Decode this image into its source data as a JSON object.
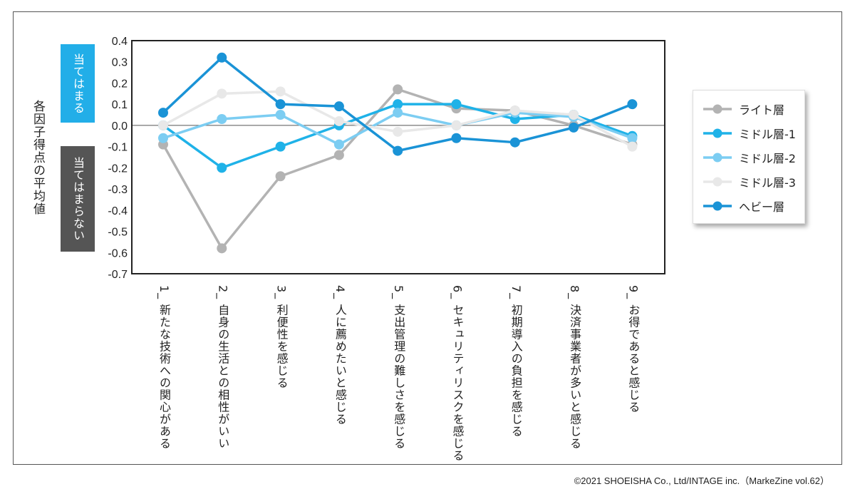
{
  "chart_data": {
    "type": "line",
    "title": "",
    "ylabel": "各因子得点の平均値",
    "ylim": [
      -0.7,
      0.4
    ],
    "yticks": [
      "0.4",
      "0.3",
      "0.2",
      "0.1",
      "0.0",
      "-0.1",
      "-0.2",
      "-0.3",
      "-0.4",
      "-0.5",
      "-0.6",
      "-0.7"
    ],
    "categories": [
      "1_ 新たな技術への関心がある",
      "2_ 自身の生活との相性がいい",
      "3_ 利便性を感じる",
      "4_ 人に薦めたいと感じる",
      "5_ 支出管理の難しさを感じる",
      "6_ セキュリティリスクを感じる",
      "7_ 初期導入の負担を感じる",
      "8_ 決済事業者が多いと感じる",
      "9_ お得であると感じる"
    ],
    "series": [
      {
        "name": "ライト層",
        "color": "#b3b3b3",
        "values": [
          -0.09,
          -0.58,
          -0.24,
          -0.14,
          0.17,
          0.08,
          0.07,
          0.0,
          -0.09
        ]
      },
      {
        "name": "ミドル層-1",
        "color": "#1fb2e8",
        "values": [
          0.0,
          -0.2,
          -0.1,
          0.0,
          0.1,
          0.1,
          0.03,
          0.05,
          -0.05
        ]
      },
      {
        "name": "ミドル層-2",
        "color": "#7ccdf2",
        "values": [
          -0.06,
          0.03,
          0.05,
          -0.09,
          0.06,
          0.0,
          0.06,
          0.04,
          -0.06
        ]
      },
      {
        "name": "ミドル層-3",
        "color": "#e8e8e8",
        "values": [
          0.0,
          0.15,
          0.16,
          0.02,
          -0.03,
          0.0,
          0.07,
          0.05,
          -0.1
        ]
      },
      {
        "name": "ヘビー層",
        "color": "#1a93d6",
        "values": [
          0.06,
          0.32,
          0.1,
          0.09,
          -0.12,
          -0.06,
          -0.08,
          -0.01,
          0.1
        ]
      }
    ],
    "legend_position": "right"
  },
  "badges": {
    "positive": "当てはまる",
    "negative": "当てはまらない",
    "positive_color": "#22aee8",
    "negative_color": "#555555"
  },
  "copyright": "©2021 SHOEISHA Co., Ltd/INTAGE inc.（MarkeZine vol.62）"
}
